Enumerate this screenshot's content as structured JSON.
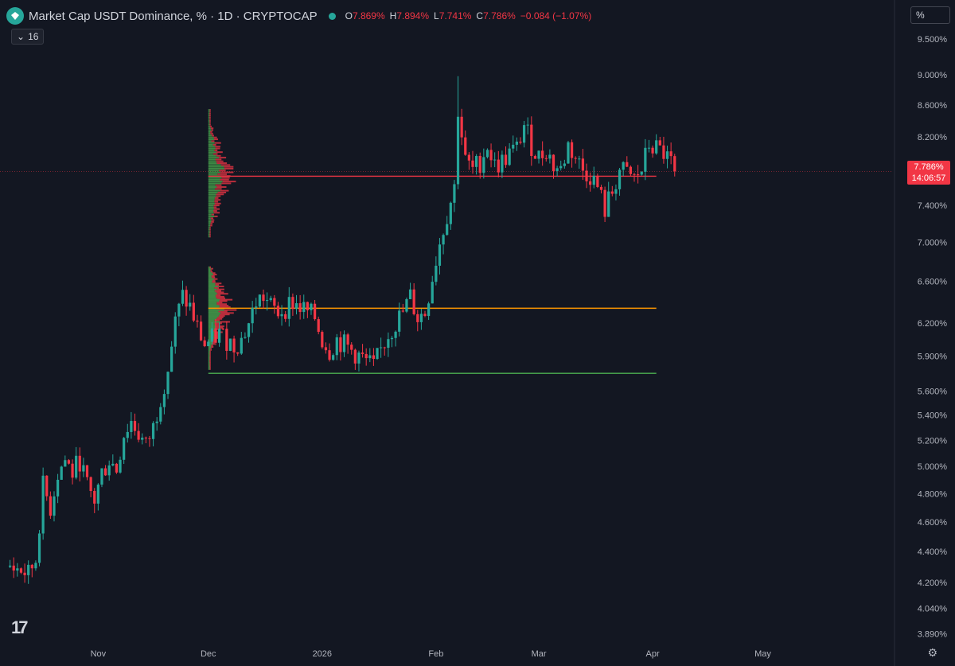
{
  "header": {
    "title": "Market Cap USDT Dominance, % · 1D · CRYPTOCAP",
    "ohlc": {
      "o_label": "O",
      "o": "7.869%",
      "h_label": "H",
      "h": "7.894%",
      "l_label": "L",
      "l": "7.741%",
      "c_label": "C",
      "c": "7.786%",
      "change": "−0.084 (−1.07%)"
    },
    "indicator_count": "16",
    "scale_button": "%"
  },
  "last_price": {
    "value": "7.786%",
    "countdown": "14:06:57"
  },
  "colors": {
    "up": "#26a69a",
    "down": "#f23645",
    "bg": "#131722",
    "poc_upper": "#f23645",
    "poc_lower": "#ff9800",
    "low_line": "#4caf50"
  },
  "chart_data": {
    "type": "candlestick",
    "y_scale": "log",
    "ylim": [
      3.85,
      9.6
    ],
    "y_ticks": [
      "9.500%",
      "9.000%",
      "8.600%",
      "8.200%",
      "7.400%",
      "7.000%",
      "6.600%",
      "6.200%",
      "5.900%",
      "5.600%",
      "5.400%",
      "5.200%",
      "5.000%",
      "4.800%",
      "4.600%",
      "4.400%",
      "4.200%",
      "4.040%",
      "3.890%"
    ],
    "y_tick_values": [
      9.5,
      9.0,
      8.6,
      8.2,
      7.4,
      7.0,
      6.6,
      6.2,
      5.9,
      5.6,
      5.4,
      5.2,
      5.0,
      4.8,
      4.6,
      4.4,
      4.2,
      4.04,
      3.89
    ],
    "x_labels": [
      {
        "label": "Nov",
        "day": 24
      },
      {
        "label": "Dec",
        "day": 54
      },
      {
        "label": "2026",
        "day": 85
      },
      {
        "label": "Feb",
        "day": 116
      },
      {
        "label": "Mar",
        "day": 144
      },
      {
        "label": "Apr",
        "day": 175
      },
      {
        "label": "May",
        "day": 205
      }
    ],
    "x_range_days": [
      -1,
      240
    ],
    "close_path": [
      [
        0,
        4.3
      ],
      [
        3,
        4.28
      ],
      [
        5,
        4.25
      ],
      [
        7,
        4.35
      ],
      [
        9,
        4.85
      ],
      [
        11,
        4.7
      ],
      [
        13,
        4.95
      ],
      [
        15,
        5.05
      ],
      [
        17,
        4.95
      ],
      [
        19,
        5.05
      ],
      [
        21,
        4.85
      ],
      [
        23,
        4.75
      ],
      [
        25,
        4.95
      ],
      [
        27,
        5.05
      ],
      [
        29,
        4.98
      ],
      [
        31,
        5.25
      ],
      [
        33,
        5.35
      ],
      [
        35,
        5.25
      ],
      [
        37,
        5.15
      ],
      [
        39,
        5.3
      ],
      [
        41,
        5.55
      ],
      [
        43,
        5.8
      ],
      [
        45,
        6.2
      ],
      [
        47,
        6.45
      ],
      [
        49,
        6.35
      ],
      [
        51,
        6.15
      ],
      [
        53,
        6.0
      ],
      [
        55,
        6.05
      ],
      [
        57,
        6.1
      ],
      [
        59,
        6.05
      ],
      [
        61,
        6.0
      ],
      [
        63,
        6.05
      ],
      [
        65,
        6.2
      ],
      [
        67,
        6.4
      ],
      [
        69,
        6.45
      ],
      [
        71,
        6.35
      ],
      [
        73,
        6.3
      ],
      [
        75,
        6.35
      ],
      [
        77,
        6.4
      ],
      [
        79,
        6.35
      ],
      [
        81,
        6.3
      ],
      [
        83,
        6.25
      ],
      [
        85,
        6.05
      ],
      [
        87,
        5.95
      ],
      [
        89,
        6.05
      ],
      [
        91,
        6.0
      ],
      [
        93,
        5.95
      ],
      [
        95,
        5.9
      ],
      [
        97,
        5.85
      ],
      [
        99,
        5.8
      ],
      [
        101,
        5.95
      ],
      [
        103,
        6.1
      ],
      [
        105,
        6.2
      ],
      [
        107,
        6.3
      ],
      [
        109,
        6.45
      ],
      [
        111,
        6.25
      ],
      [
        113,
        6.3
      ],
      [
        115,
        6.65
      ],
      [
        117,
        7.0
      ],
      [
        119,
        7.3
      ],
      [
        121,
        7.6
      ],
      [
        122,
        8.55
      ],
      [
        124,
        7.9
      ],
      [
        126,
        7.8
      ],
      [
        128,
        7.9
      ],
      [
        130,
        8.1
      ],
      [
        132,
        7.85
      ],
      [
        134,
        7.9
      ],
      [
        136,
        8.0
      ],
      [
        138,
        8.05
      ],
      [
        140,
        8.35
      ],
      [
        142,
        8.1
      ],
      [
        144,
        7.95
      ],
      [
        146,
        8.05
      ],
      [
        148,
        7.85
      ],
      [
        150,
        7.8
      ],
      [
        152,
        8.1
      ],
      [
        154,
        7.95
      ],
      [
        156,
        7.8
      ],
      [
        158,
        7.75
      ],
      [
        160,
        7.6
      ],
      [
        162,
        7.35
      ],
      [
        164,
        7.55
      ],
      [
        166,
        7.8
      ],
      [
        168,
        7.75
      ],
      [
        170,
        7.7
      ],
      [
        172,
        7.8
      ],
      [
        174,
        8.1
      ],
      [
        176,
        8.05
      ],
      [
        178,
        8.0
      ],
      [
        180,
        7.87
      ],
      [
        181,
        7.786
      ]
    ],
    "horizontal_levels": [
      {
        "name": "upper-poc",
        "value": 7.73,
        "from_day": 54,
        "to_day": 176,
        "color": "#f23645"
      },
      {
        "name": "lower-poc",
        "value": 6.34,
        "from_day": 54,
        "to_day": 176,
        "color": "#ff9800"
      },
      {
        "name": "range-low",
        "value": 5.75,
        "from_day": 54,
        "to_day": 176,
        "color": "#4caf50"
      }
    ],
    "volume_profiles": [
      {
        "name": "upper-profile",
        "from": 7.05,
        "to": 8.55,
        "poc": 7.73,
        "start_day": 54
      },
      {
        "name": "lower-profile",
        "from": 5.78,
        "to": 6.75,
        "poc": 6.34,
        "start_day": 54
      }
    ],
    "last_value": 7.786
  }
}
